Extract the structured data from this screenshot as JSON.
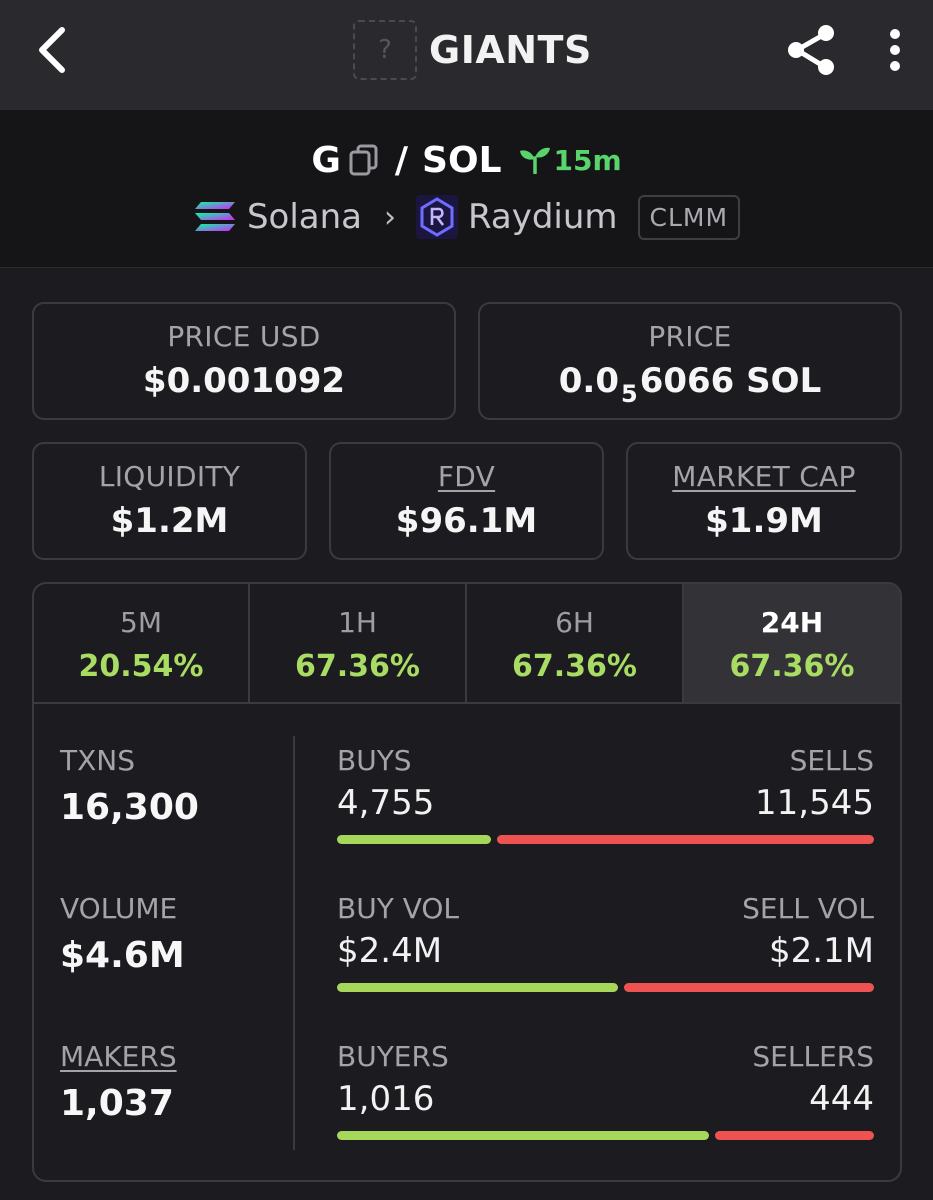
{
  "header": {
    "title": "GIANTS",
    "token_logo_placeholder": "?",
    "icons": [
      "back-arrow-icon",
      "share-icon",
      "more-vertical-icon"
    ]
  },
  "pair": {
    "base": "G",
    "separator": "/",
    "quote": "SOL",
    "age": "15m",
    "chain": "Solana",
    "dex": "Raydium",
    "pool_type": "CLMM",
    "chevron": "›"
  },
  "price": {
    "usd_label": "PRICE USD",
    "usd_value": "$0.001092",
    "native_label": "PRICE",
    "native_prefix": "0.0",
    "native_zeros": "5",
    "native_digits": "6066",
    "native_unit": "SOL"
  },
  "metrics": [
    {
      "label": "LIQUIDITY",
      "value": "$1.2M"
    },
    {
      "label": "FDV",
      "value": "$96.1M"
    },
    {
      "label": "MARKET CAP",
      "value": "$1.9M"
    }
  ],
  "timeframes": [
    {
      "label": "5M",
      "change": "20.54%"
    },
    {
      "label": "1H",
      "change": "67.36%"
    },
    {
      "label": "6H",
      "change": "67.36%"
    },
    {
      "label": "24H",
      "change": "67.36%",
      "active": true
    }
  ],
  "stats": {
    "txns_label": "TXNS",
    "txns_value": "16,300",
    "volume_label": "VOLUME",
    "volume_value": "$4.6M",
    "makers_label": "MAKERS",
    "makers_value": "1,037"
  },
  "splits": [
    {
      "left_label": "BUYS",
      "left_value": "4,755",
      "right_label": "SELLS",
      "right_value": "11,545",
      "buy_fraction": 0.29
    },
    {
      "left_label": "BUY VOL",
      "left_value": "$2.4M",
      "right_label": "SELL VOL",
      "right_value": "$2.1M",
      "buy_fraction": 0.53
    },
    {
      "left_label": "BUYERS",
      "left_value": "1,016",
      "right_label": "SELLERS",
      "right_value": "444",
      "buy_fraction": 0.7
    }
  ],
  "colors": {
    "positive": "#a8dc63",
    "buy_bar": "#a6d75b",
    "sell_bar": "#ee5351",
    "age_green": "#59d36b"
  }
}
